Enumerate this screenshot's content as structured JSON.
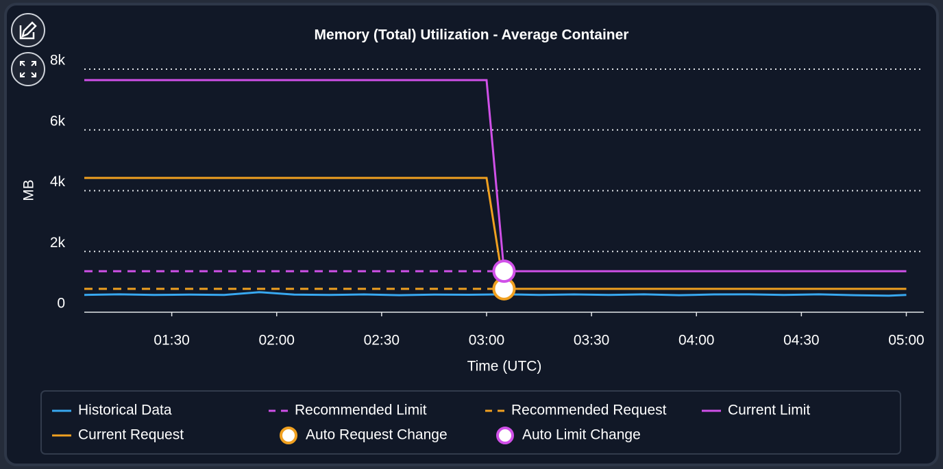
{
  "chart_data": {
    "type": "line",
    "title": "Memory (Total) Utilization - Average Container",
    "y_label": "MB",
    "x_label": "Time (UTC)",
    "xlim": [
      "01:05",
      "05:05"
    ],
    "xticks": [
      "01:30",
      "02:00",
      "02:30",
      "03:00",
      "03:30",
      "04:00",
      "04:30",
      "05:00"
    ],
    "ylim": [
      0,
      8000
    ],
    "yticks": [
      {
        "value": 0,
        "label": "0"
      },
      {
        "value": 2000,
        "label": "2k"
      },
      {
        "value": 4000,
        "label": "4k"
      },
      {
        "value": 6000,
        "label": "6k"
      },
      {
        "value": 8000,
        "label": "8k"
      }
    ],
    "grid": true,
    "series": [
      {
        "name": "Historical Data",
        "color": "#38a8f0",
        "style": "solid",
        "x": [
          "01:05",
          "01:15",
          "01:25",
          "01:35",
          "01:45",
          "01:55",
          "02:05",
          "02:15",
          "02:25",
          "02:35",
          "02:45",
          "02:55",
          "03:05",
          "03:15",
          "03:25",
          "03:35",
          "03:45",
          "03:55",
          "04:05",
          "04:15",
          "04:25",
          "04:35",
          "04:45",
          "04:55",
          "05:00"
        ],
        "values": [
          570,
          590,
          570,
          580,
          570,
          660,
          580,
          570,
          585,
          560,
          580,
          575,
          590,
          570,
          585,
          570,
          590,
          560,
          585,
          590,
          570,
          590,
          560,
          545,
          570
        ]
      },
      {
        "name": "Recommended Limit",
        "color": "#d050e8",
        "style": "dashed",
        "x": [
          "01:05",
          "03:05"
        ],
        "values": [
          1350,
          1350
        ]
      },
      {
        "name": "Recommended Request",
        "color": "#f0a020",
        "style": "dashed",
        "x": [
          "01:05",
          "03:05"
        ],
        "values": [
          770,
          770
        ]
      },
      {
        "name": "Current Limit",
        "color": "#d050e8",
        "style": "solid",
        "x": [
          "01:05",
          "03:00",
          "03:05",
          "05:00"
        ],
        "values": [
          7640,
          7640,
          1350,
          1350
        ]
      },
      {
        "name": "Current Request",
        "color": "#f0a020",
        "style": "solid",
        "x": [
          "01:05",
          "03:00",
          "03:05",
          "05:00"
        ],
        "values": [
          4420,
          4420,
          770,
          770
        ]
      },
      {
        "name": "Auto Request Change",
        "color": "#f0a020",
        "style": "marker",
        "x": [
          "03:05"
        ],
        "values": [
          770
        ]
      },
      {
        "name": "Auto Limit Change",
        "color": "#d050e8",
        "style": "marker",
        "x": [
          "03:05"
        ],
        "values": [
          1350
        ]
      }
    ]
  }
}
